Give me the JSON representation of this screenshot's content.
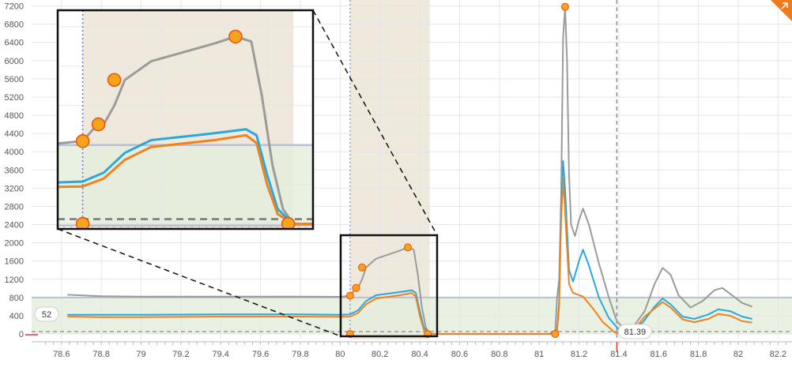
{
  "chart_data": {
    "type": "line",
    "x_ticks": [
      78.6,
      78.8,
      79,
      79.2,
      79.4,
      79.6,
      79.8,
      80,
      80.2,
      80.4,
      80.6,
      80.8,
      81,
      81.2,
      81.4,
      81.6,
      81.8,
      82,
      82.2
    ],
    "y_ticks": [
      0,
      400,
      800,
      1200,
      1600,
      2000,
      2400,
      2800,
      3200,
      3600,
      4000,
      4400,
      4800,
      5200,
      5600,
      6000,
      6400,
      6800,
      7200
    ],
    "xlim": [
      78.45,
      82.27
    ],
    "ylim": [
      -120,
      7330
    ],
    "grid": true,
    "value_badge": "52",
    "cursor_badge": "81.39",
    "cursor_x": 81.39,
    "selection_x": 80.05,
    "shaded_x_range": [
      80.05,
      80.45
    ],
    "band_y_range": [
      0,
      800
    ],
    "threshold_y": 0,
    "colors": {
      "gray": "#9b9b9b",
      "blue": "#29a8e0",
      "orange": "#f0821e",
      "marker_fill": "#f7a41d",
      "marker_stroke": "#e8520f",
      "band": "#e4eedc",
      "shade": "#efe8dc",
      "accent": "#f07a1a",
      "cursor_red": "#e83a3a"
    },
    "series": [
      {
        "key": "gray",
        "values": [
          [
            78.63,
            860
          ],
          [
            78.8,
            830
          ],
          [
            79,
            820
          ],
          [
            79.4,
            820
          ],
          [
            79.8,
            820
          ],
          [
            80,
            815
          ],
          [
            80.05,
            840
          ],
          [
            80.07,
            960
          ],
          [
            80.09,
            1010
          ],
          [
            80.11,
            1200
          ],
          [
            80.13,
            1460
          ],
          [
            80.18,
            1650
          ],
          [
            80.3,
            1830
          ],
          [
            80.34,
            1900
          ],
          [
            80.37,
            1850
          ],
          [
            80.39,
            1300
          ],
          [
            80.41,
            600
          ],
          [
            80.43,
            150
          ],
          [
            80.45,
            0
          ],
          [
            81.05,
            0
          ],
          [
            81.08,
            0
          ],
          [
            81.09,
            800
          ],
          [
            81.1,
            1200
          ],
          [
            81.11,
            3000
          ],
          [
            81.12,
            6500
          ],
          [
            81.13,
            7180
          ],
          [
            81.14,
            6000
          ],
          [
            81.15,
            3500
          ],
          [
            81.16,
            2400
          ],
          [
            81.18,
            2150
          ],
          [
            81.2,
            2500
          ],
          [
            81.22,
            2750
          ],
          [
            81.25,
            2400
          ],
          [
            81.3,
            1550
          ],
          [
            81.35,
            800
          ],
          [
            81.39,
            280
          ],
          [
            81.43,
            100
          ],
          [
            81.48,
            200
          ],
          [
            81.53,
            500
          ],
          [
            81.58,
            1100
          ],
          [
            81.62,
            1450
          ],
          [
            81.66,
            1300
          ],
          [
            81.7,
            850
          ],
          [
            81.76,
            580
          ],
          [
            81.82,
            720
          ],
          [
            81.88,
            960
          ],
          [
            81.92,
            1010
          ],
          [
            81.96,
            880
          ],
          [
            82.02,
            680
          ],
          [
            82.07,
            600
          ]
        ]
      },
      {
        "key": "blue",
        "values": [
          [
            78.63,
            420
          ],
          [
            78.8,
            420
          ],
          [
            79,
            420
          ],
          [
            79.4,
            430
          ],
          [
            79.8,
            430
          ],
          [
            80,
            420
          ],
          [
            80.05,
            430
          ],
          [
            80.09,
            520
          ],
          [
            80.13,
            720
          ],
          [
            80.18,
            850
          ],
          [
            80.3,
            920
          ],
          [
            80.36,
            960
          ],
          [
            80.38,
            900
          ],
          [
            80.4,
            500
          ],
          [
            80.42,
            150
          ],
          [
            80.45,
            0
          ],
          [
            81.05,
            0
          ],
          [
            81.09,
            100
          ],
          [
            81.1,
            700
          ],
          [
            81.11,
            2800
          ],
          [
            81.12,
            3800
          ],
          [
            81.13,
            3200
          ],
          [
            81.15,
            1400
          ],
          [
            81.17,
            1150
          ],
          [
            81.2,
            1600
          ],
          [
            81.22,
            1850
          ],
          [
            81.25,
            1500
          ],
          [
            81.3,
            800
          ],
          [
            81.35,
            350
          ],
          [
            81.4,
            100
          ],
          [
            81.45,
            80
          ],
          [
            81.52,
            250
          ],
          [
            81.58,
            600
          ],
          [
            81.62,
            780
          ],
          [
            81.66,
            650
          ],
          [
            81.72,
            380
          ],
          [
            81.78,
            330
          ],
          [
            81.85,
            430
          ],
          [
            81.9,
            540
          ],
          [
            81.96,
            500
          ],
          [
            82.02,
            380
          ],
          [
            82.07,
            330
          ]
        ]
      },
      {
        "key": "orange",
        "values": [
          [
            78.63,
            380
          ],
          [
            78.8,
            370
          ],
          [
            79,
            370
          ],
          [
            79.4,
            380
          ],
          [
            79.8,
            380
          ],
          [
            80,
            375
          ],
          [
            80.05,
            380
          ],
          [
            80.09,
            460
          ],
          [
            80.13,
            650
          ],
          [
            80.18,
            780
          ],
          [
            80.3,
            850
          ],
          [
            80.36,
            900
          ],
          [
            80.38,
            820
          ],
          [
            80.4,
            400
          ],
          [
            80.42,
            100
          ],
          [
            80.45,
            0
          ],
          [
            81.05,
            0
          ],
          [
            81.09,
            80
          ],
          [
            81.1,
            600
          ],
          [
            81.11,
            2500
          ],
          [
            81.12,
            3400
          ],
          [
            81.13,
            2700
          ],
          [
            81.15,
            1100
          ],
          [
            81.17,
            900
          ],
          [
            81.22,
            820
          ],
          [
            81.27,
            560
          ],
          [
            81.32,
            260
          ],
          [
            81.38,
            30
          ],
          [
            81.42,
            0
          ],
          [
            81.47,
            60
          ],
          [
            81.53,
            380
          ],
          [
            81.58,
            560
          ],
          [
            81.62,
            700
          ],
          [
            81.66,
            580
          ],
          [
            81.72,
            320
          ],
          [
            81.78,
            260
          ],
          [
            81.85,
            330
          ],
          [
            81.9,
            440
          ],
          [
            81.96,
            400
          ],
          [
            82.02,
            280
          ],
          [
            82.07,
            250
          ]
        ]
      }
    ],
    "markers": [
      [
        80.05,
        0
      ],
      [
        80.05,
        840
      ],
      [
        80.08,
        1010
      ],
      [
        80.11,
        1460
      ],
      [
        80.34,
        1900
      ],
      [
        80.44,
        0
      ],
      [
        81.08,
        0
      ],
      [
        81.13,
        7180
      ]
    ]
  }
}
